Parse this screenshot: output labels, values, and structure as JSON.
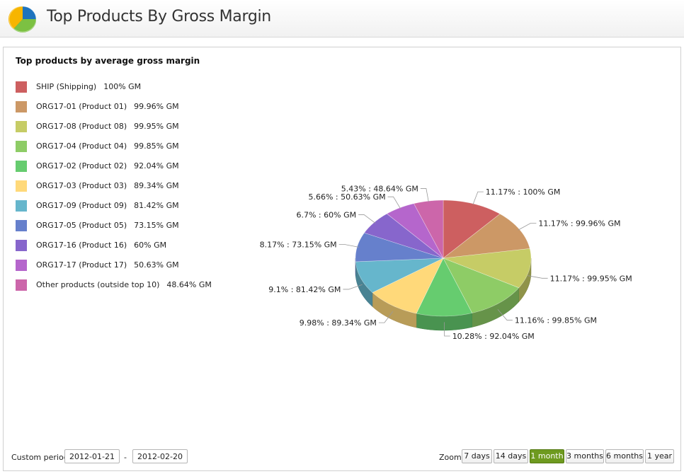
{
  "header": {
    "title": "Top Products By Gross Margin",
    "logo_icon": "pie-chart-logo-icon"
  },
  "chart_data": {
    "type": "pie",
    "title": "Top products by average gross margin",
    "legend_position": "left",
    "slices": [
      {
        "name": "SHIP (Shipping)",
        "gm": "100% GM",
        "share": 11.17,
        "label": "11.17% : 100% GM",
        "color": "#cd5f60"
      },
      {
        "name": "ORG17-01 (Product 01)",
        "gm": "99.96% GM",
        "share": 11.17,
        "label": "11.17% : 99.96% GM",
        "color": "#cc9866"
      },
      {
        "name": "ORG17-08 (Product 08)",
        "gm": "99.95% GM",
        "share": 11.17,
        "label": "11.17% : 99.95% GM",
        "color": "#c6cc66"
      },
      {
        "name": "ORG17-04 (Product 04)",
        "gm": "99.85% GM",
        "share": 11.16,
        "label": "11.16% : 99.85% GM",
        "color": "#8ecc66"
      },
      {
        "name": "ORG17-02 (Product 02)",
        "gm": "92.04% GM",
        "share": 10.28,
        "label": "10.28% : 92.04% GM",
        "color": "#66cc6f"
      },
      {
        "name": "ORG17-03 (Product 03)",
        "gm": "89.34% GM",
        "share": 9.98,
        "label": "9.98% : 89.34% GM",
        "color": "#ffd97a"
      },
      {
        "name": "ORG17-09 (Product 09)",
        "gm": "81.42% GM",
        "share": 9.1,
        "label": "9.1% : 81.42% GM",
        "color": "#66b6cc"
      },
      {
        "name": "ORG17-05 (Product 05)",
        "gm": "73.15% GM",
        "share": 8.17,
        "label": "8.17% : 73.15% GM",
        "color": "#6680cc"
      },
      {
        "name": "ORG17-16 (Product 16)",
        "gm": "60% GM",
        "share": 6.7,
        "label": "6.7% : 60% GM",
        "color": "#8766cc"
      },
      {
        "name": "ORG17-17 (Product 17)",
        "gm": "50.63% GM",
        "share": 5.66,
        "label": "5.66% : 50.63% GM",
        "color": "#b566cc"
      },
      {
        "name": "Other products (outside top 10)",
        "gm": "48.64% GM",
        "share": 5.43,
        "label": "5.43% : 48.64% GM",
        "color": "#cc66aa"
      }
    ]
  },
  "period": {
    "label": "Custom period:",
    "start": "2012-01-21",
    "separator": "-",
    "end": "2012-02-20"
  },
  "zoom": {
    "label": "Zoom:",
    "options": [
      "7 days",
      "14 days",
      "1 month",
      "3 months",
      "6 months",
      "1 year"
    ],
    "selected": "1 month",
    "active_color": "#6e9a1f"
  }
}
